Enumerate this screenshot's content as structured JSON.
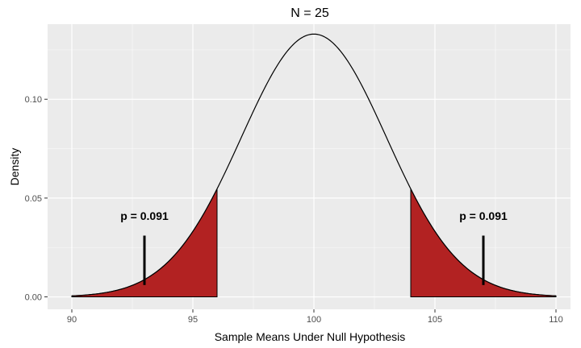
{
  "chart_data": {
    "type": "area",
    "title": "N = 25",
    "xlabel": "Sample Means Under Null Hypothesis",
    "ylabel": "Density",
    "xlim": [
      89.0,
      110.6
    ],
    "ylim": [
      -0.0063,
      0.138
    ],
    "x_ticks": [
      {
        "value": 90,
        "label": "90"
      },
      {
        "value": 95,
        "label": "95"
      },
      {
        "value": 100,
        "label": "100"
      },
      {
        "value": 105,
        "label": "105"
      },
      {
        "value": 110,
        "label": "110"
      }
    ],
    "y_ticks": [
      {
        "value": 0.0,
        "label": "0.00"
      },
      {
        "value": 0.05,
        "label": "0.05"
      },
      {
        "value": 0.1,
        "label": "0.10"
      }
    ],
    "grid": true,
    "distribution": {
      "family": "normal",
      "mean": 100,
      "sd": 3,
      "x_range": [
        90,
        110
      ]
    },
    "shaded_regions": [
      {
        "from": 90,
        "to": 96,
        "color": "#b22222"
      },
      {
        "from": 104,
        "to": 110,
        "color": "#b22222"
      }
    ],
    "markers": [
      {
        "x": 93,
        "y_from": 0.006,
        "y_to": 0.031
      },
      {
        "x": 107,
        "y_from": 0.006,
        "y_to": 0.031
      }
    ],
    "annotations": [
      {
        "x": 93,
        "y": 0.039,
        "text": "p = 0.091"
      },
      {
        "x": 107,
        "y": 0.039,
        "text": "p = 0.091"
      }
    ],
    "colors": {
      "panel": "#ebebeb",
      "grid_major": "#ffffff",
      "curve": "#000000",
      "fill": "#b22222"
    }
  }
}
